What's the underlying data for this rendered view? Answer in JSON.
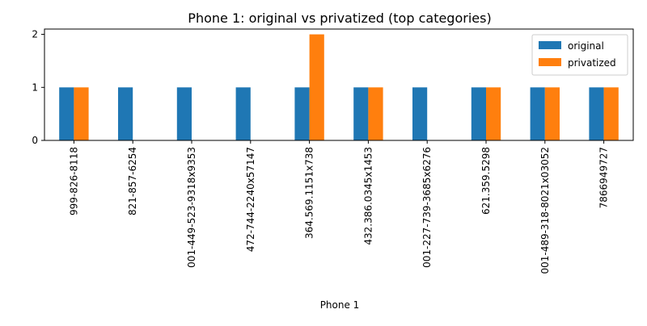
{
  "chart_data": {
    "type": "bar",
    "title": "Phone 1: original vs privatized (top categories)",
    "xlabel": "Phone 1",
    "ylabel": "",
    "categories": [
      "999-826-8118",
      "821-857-6254",
      "001-449-523-9318x9353",
      "472-744-2240x57147",
      "364.569.1151x738",
      "432.386.0345x1453",
      "001-227-739-3685x6276",
      "621.359.5298",
      "001-489-318-8021x03052",
      "7866949727"
    ],
    "series": [
      {
        "name": "original",
        "color": "#1f77b4",
        "values": [
          1,
          1,
          1,
          1,
          1,
          1,
          1,
          1,
          1,
          1
        ]
      },
      {
        "name": "privatized",
        "color": "#ff7f0e",
        "values": [
          1,
          0,
          0,
          0,
          2,
          1,
          0,
          1,
          1,
          1
        ]
      }
    ],
    "ylim": [
      0,
      2.1
    ],
    "yticks": [
      0,
      1,
      2
    ],
    "grid": false,
    "legend": "upper right"
  }
}
